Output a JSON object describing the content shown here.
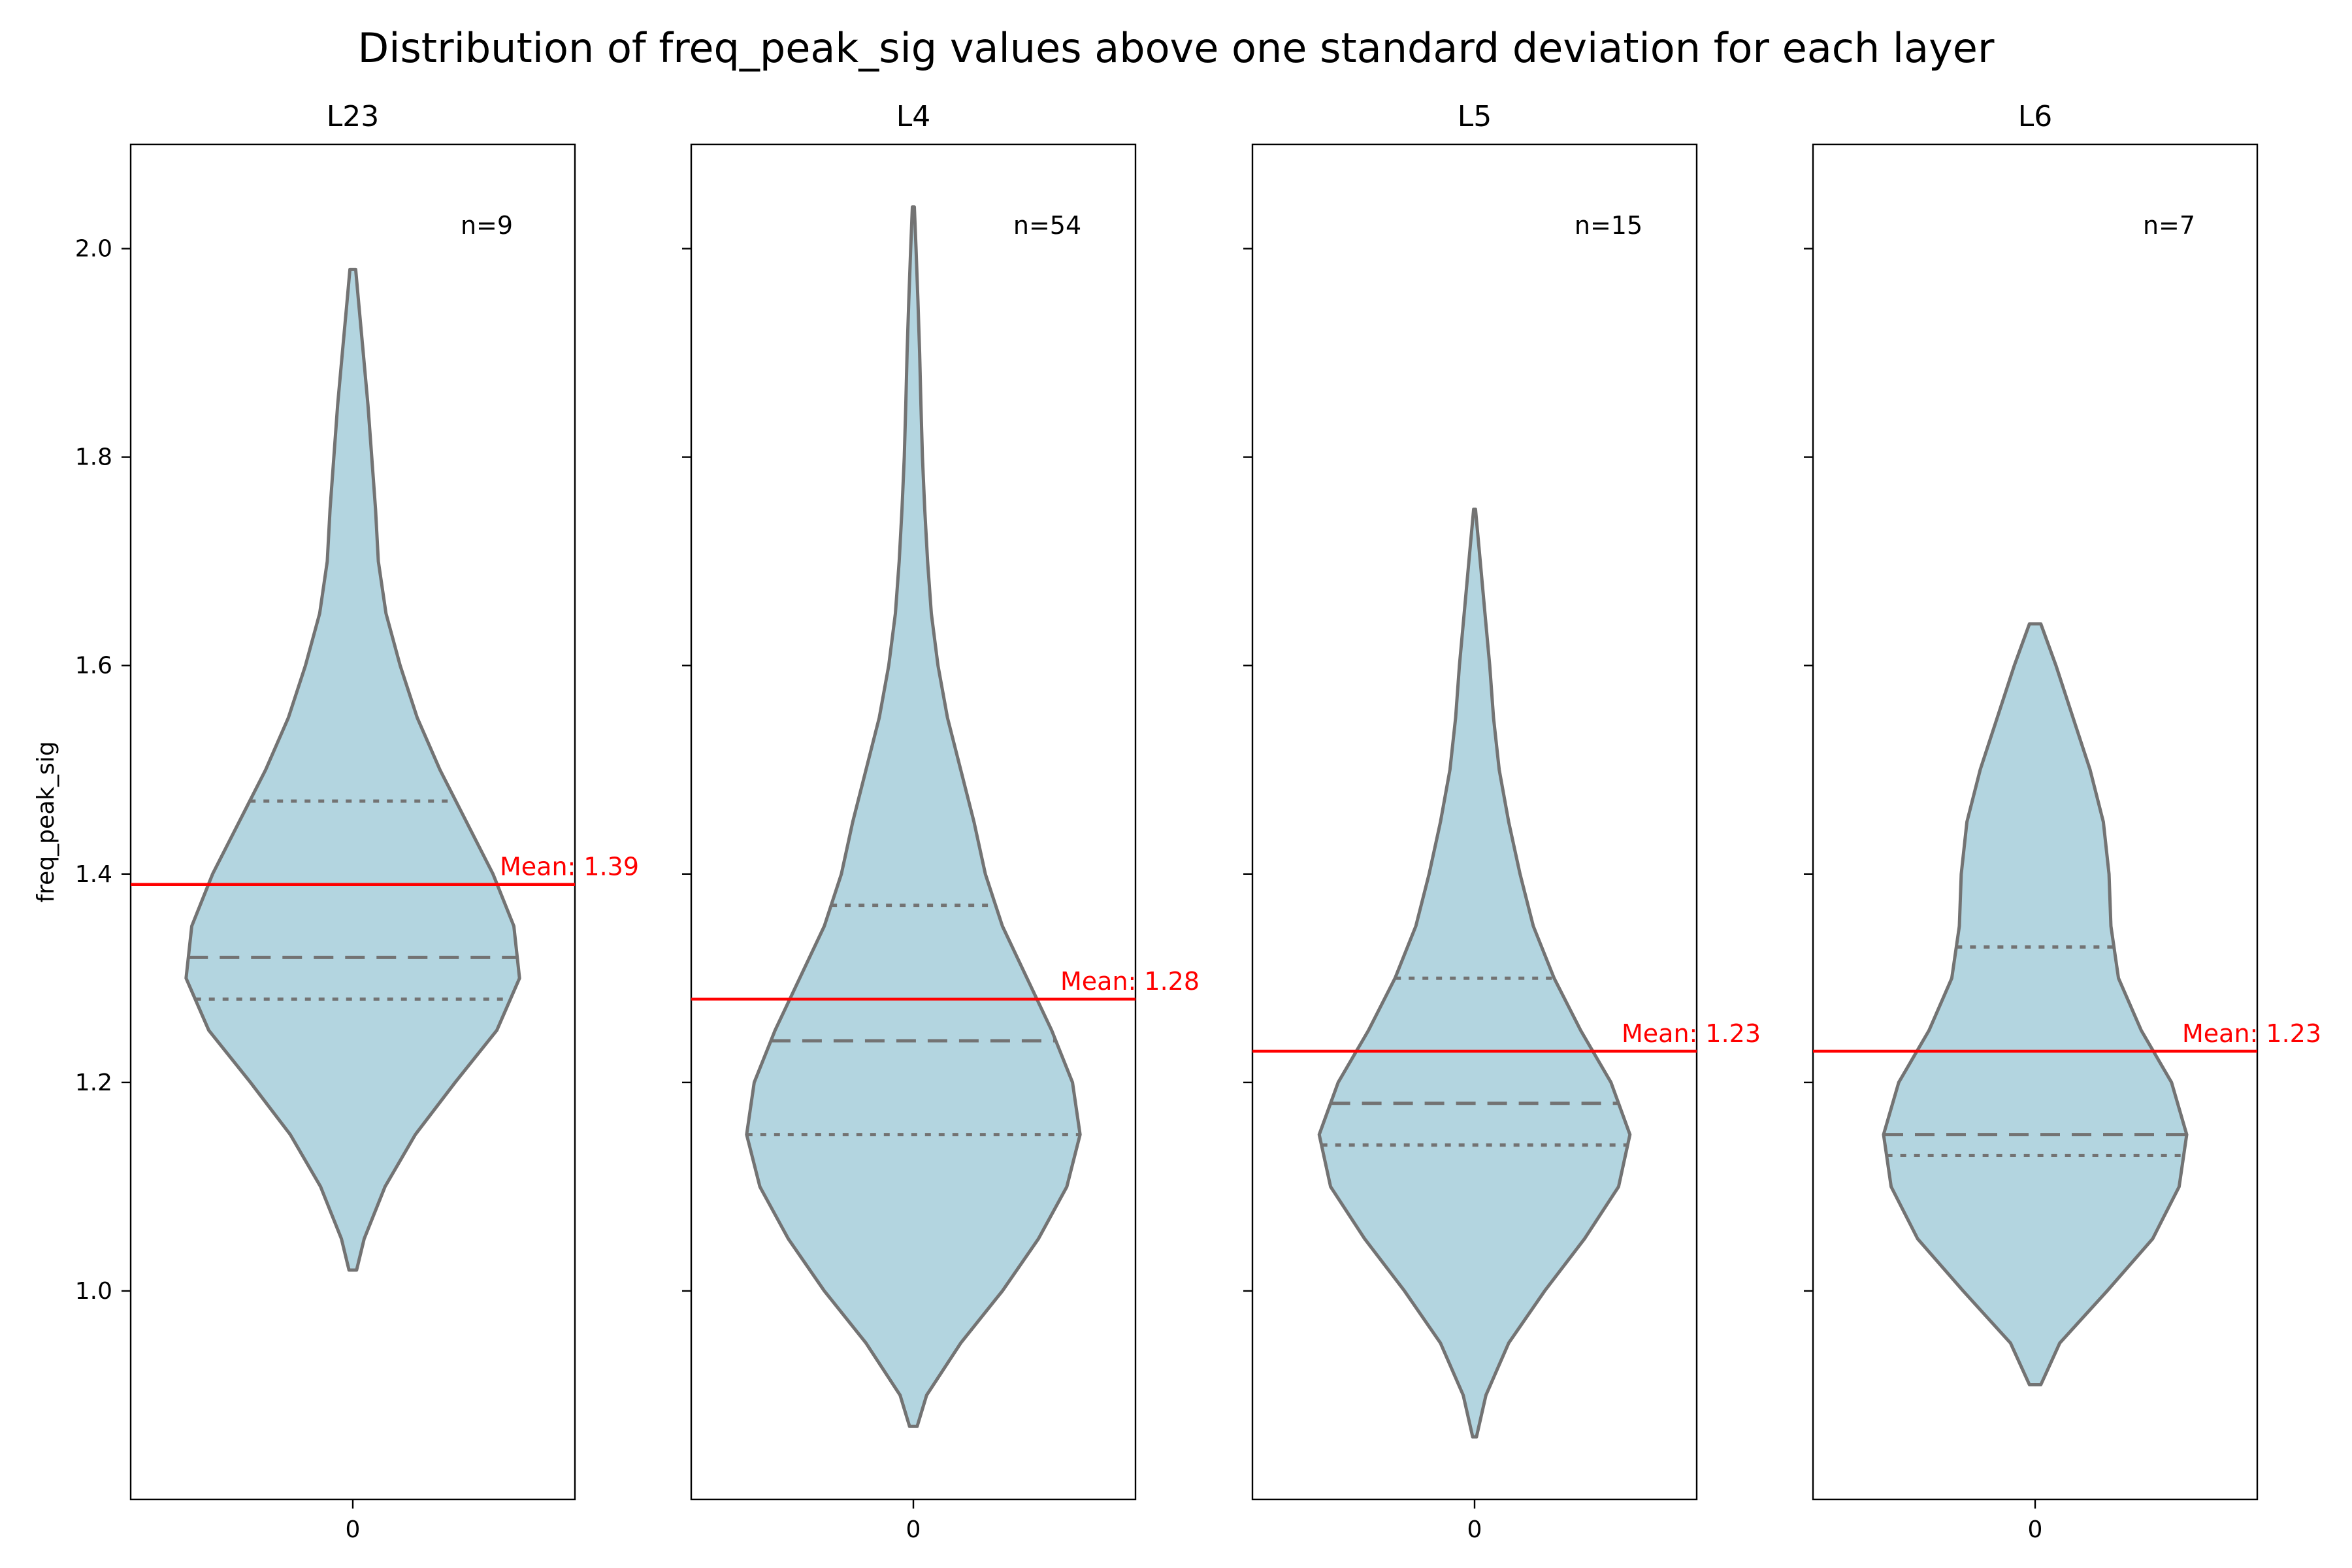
{
  "chart_data": {
    "type": "violin",
    "title": "Distribution of freq_peak_sig values above one standard deviation for each layer",
    "ylabel": "freq_peak_sig",
    "ylim": [
      0.8,
      2.1
    ],
    "yticks": [
      1.0,
      1.2,
      1.4,
      1.6,
      1.8,
      2.0
    ],
    "ytick_labels": [
      "1.0",
      "1.2",
      "1.4",
      "1.6",
      "1.8",
      "2.0"
    ],
    "xtick_label": "0",
    "colors": {
      "fill": "#b3d5e0",
      "outline": "#737373",
      "mean": "#ff0000",
      "axes": "#000000"
    },
    "panels": [
      {
        "title": "L23",
        "n_label": "n=9",
        "mean": 1.39,
        "mean_label": "Mean: 1.39",
        "quartiles": {
          "q1": 1.28,
          "median": 1.32,
          "q3": 1.47
        },
        "violin_range": [
          1.02,
          1.98
        ],
        "density": [
          [
            1.02,
            0.02
          ],
          [
            1.05,
            0.06
          ],
          [
            1.1,
            0.17
          ],
          [
            1.15,
            0.33
          ],
          [
            1.2,
            0.54
          ],
          [
            1.25,
            0.76
          ],
          [
            1.3,
            0.88
          ],
          [
            1.35,
            0.85
          ],
          [
            1.4,
            0.74
          ],
          [
            1.45,
            0.6
          ],
          [
            1.5,
            0.46
          ],
          [
            1.55,
            0.34
          ],
          [
            1.6,
            0.25
          ],
          [
            1.65,
            0.175
          ],
          [
            1.7,
            0.135
          ],
          [
            1.75,
            0.12
          ],
          [
            1.8,
            0.1
          ],
          [
            1.85,
            0.08
          ],
          [
            1.9,
            0.055
          ],
          [
            1.95,
            0.03
          ],
          [
            1.98,
            0.015
          ]
        ]
      },
      {
        "title": "L4",
        "n_label": "n=54",
        "mean": 1.28,
        "mean_label": "Mean: 1.28",
        "quartiles": {
          "q1": 1.15,
          "median": 1.24,
          "q3": 1.37
        },
        "violin_range": [
          0.87,
          2.04
        ],
        "density": [
          [
            0.87,
            0.02
          ],
          [
            0.9,
            0.07
          ],
          [
            0.95,
            0.25
          ],
          [
            1.0,
            0.47
          ],
          [
            1.05,
            0.66
          ],
          [
            1.1,
            0.81
          ],
          [
            1.15,
            0.88
          ],
          [
            1.2,
            0.84
          ],
          [
            1.25,
            0.73
          ],
          [
            1.3,
            0.6
          ],
          [
            1.35,
            0.47
          ],
          [
            1.4,
            0.38
          ],
          [
            1.45,
            0.32
          ],
          [
            1.5,
            0.25
          ],
          [
            1.55,
            0.18
          ],
          [
            1.6,
            0.13
          ],
          [
            1.65,
            0.095
          ],
          [
            1.7,
            0.075
          ],
          [
            1.75,
            0.06
          ],
          [
            1.8,
            0.048
          ],
          [
            1.85,
            0.04
          ],
          [
            1.9,
            0.033
          ],
          [
            1.95,
            0.024
          ],
          [
            2.0,
            0.014
          ],
          [
            2.04,
            0.005
          ]
        ]
      },
      {
        "title": "L5",
        "n_label": "n=15",
        "mean": 1.23,
        "mean_label": "Mean: 1.23",
        "quartiles": {
          "q1": 1.14,
          "median": 1.18,
          "q3": 1.3
        },
        "violin_range": [
          0.86,
          1.75
        ],
        "density": [
          [
            0.86,
            0.01
          ],
          [
            0.9,
            0.06
          ],
          [
            0.95,
            0.18
          ],
          [
            1.0,
            0.37
          ],
          [
            1.05,
            0.58
          ],
          [
            1.1,
            0.76
          ],
          [
            1.15,
            0.82
          ],
          [
            1.2,
            0.72
          ],
          [
            1.25,
            0.56
          ],
          [
            1.3,
            0.42
          ],
          [
            1.35,
            0.31
          ],
          [
            1.4,
            0.24
          ],
          [
            1.45,
            0.18
          ],
          [
            1.5,
            0.13
          ],
          [
            1.55,
            0.1
          ],
          [
            1.6,
            0.08
          ],
          [
            1.65,
            0.055
          ],
          [
            1.7,
            0.03
          ],
          [
            1.75,
            0.005
          ]
        ]
      },
      {
        "title": "L6",
        "n_label": "n=7",
        "mean": 1.23,
        "mean_label": "Mean: 1.23",
        "quartiles": {
          "q1": 1.13,
          "median": 1.15,
          "q3": 1.33
        },
        "violin_range": [
          0.91,
          1.64
        ],
        "density": [
          [
            0.91,
            0.03
          ],
          [
            0.95,
            0.13
          ],
          [
            1.0,
            0.38
          ],
          [
            1.05,
            0.62
          ],
          [
            1.1,
            0.76
          ],
          [
            1.15,
            0.8
          ],
          [
            1.2,
            0.72
          ],
          [
            1.25,
            0.56
          ],
          [
            1.3,
            0.44
          ],
          [
            1.35,
            0.4
          ],
          [
            1.4,
            0.39
          ],
          [
            1.45,
            0.36
          ],
          [
            1.5,
            0.29
          ],
          [
            1.55,
            0.2
          ],
          [
            1.6,
            0.11
          ],
          [
            1.64,
            0.03
          ]
        ]
      }
    ]
  }
}
